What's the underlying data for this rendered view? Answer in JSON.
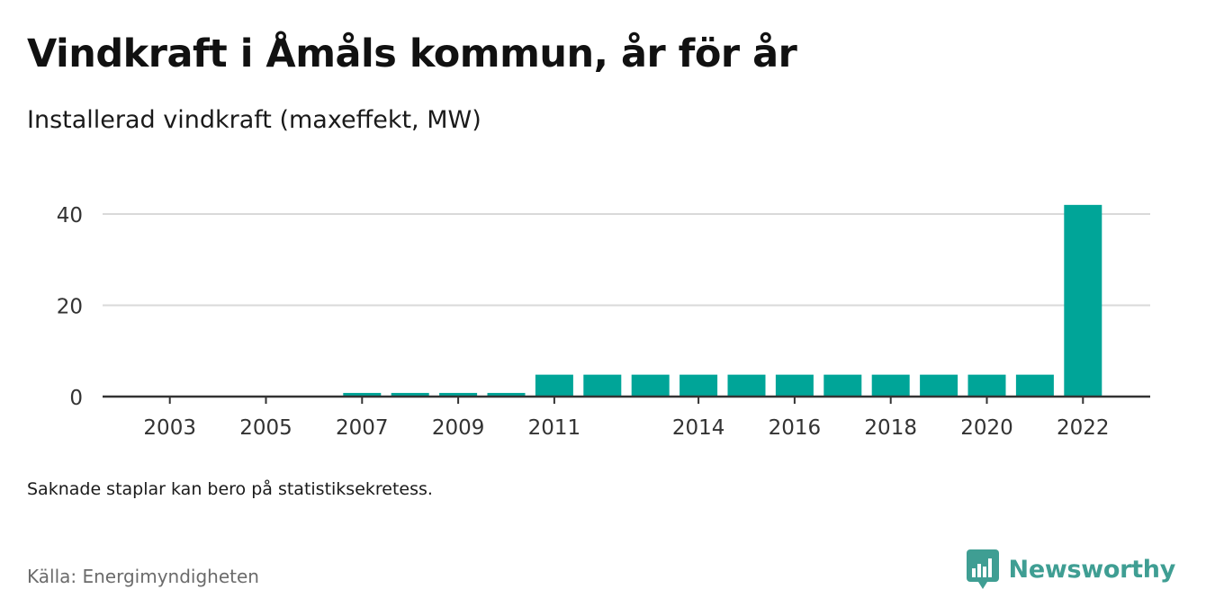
{
  "header": {
    "title": "Vindkraft i Åmåls kommun, år för år",
    "subtitle": "Installerad vindkraft (maxeffekt, MW)"
  },
  "footer": {
    "note": "Saknade staplar kan bero på statistiksekretess.",
    "source": "Källa: Energimyndigheten",
    "brand": "Newsworthy"
  },
  "colors": {
    "bar": "#00a598",
    "grid": "#d9d9d9",
    "axis": "#333333",
    "brand": "#3f9e93"
  },
  "chart_data": {
    "type": "bar",
    "title": "Vindkraft i Åmåls kommun, år för år",
    "subtitle": "Installerad vindkraft (maxeffekt, MW)",
    "categories": [
      "2003",
      "2004",
      "2005",
      "2006",
      "2007",
      "2008",
      "2009",
      "2010",
      "2011",
      "2012",
      "2013",
      "2014",
      "2015",
      "2016",
      "2017",
      "2018",
      "2019",
      "2020",
      "2021",
      "2022"
    ],
    "values": [
      0,
      0,
      0,
      0,
      0.8,
      0.8,
      0.8,
      0.8,
      4.8,
      4.8,
      4.8,
      4.8,
      4.8,
      4.8,
      4.8,
      4.8,
      4.8,
      4.8,
      4.8,
      42
    ],
    "x_tick_labels": [
      "2003",
      "2005",
      "2007",
      "2009",
      "2011",
      "2014",
      "2016",
      "2018",
      "2020",
      "2022"
    ],
    "y_ticks": [
      0,
      20,
      40
    ],
    "ylim": [
      0,
      44
    ],
    "xlabel": "",
    "ylabel": "",
    "grid": true,
    "legend": "none"
  }
}
